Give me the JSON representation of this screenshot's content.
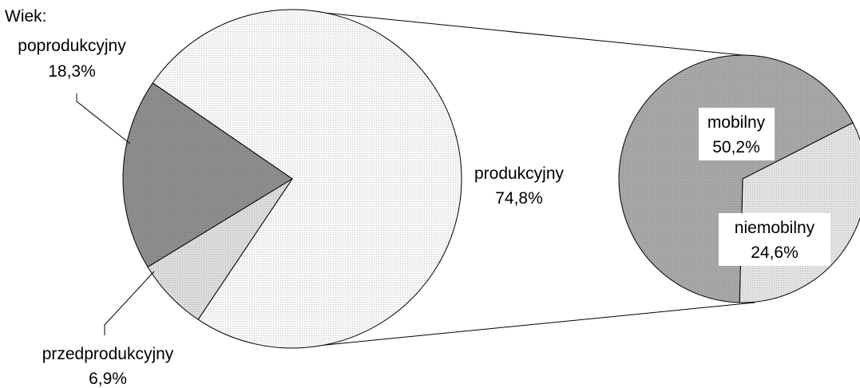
{
  "chart_data": {
    "type": "pie",
    "title": "",
    "legend_title": "Wiek:",
    "main_pie": {
      "slices": [
        {
          "name": "produkcyjny",
          "value": 74.8,
          "label": "74,8%",
          "color": "#f7f7f7"
        },
        {
          "name": "przedprodukcyjny",
          "value": 6.9,
          "label": "6,9%",
          "color": "#dcdcdc"
        },
        {
          "name": "poprodukcyjny",
          "value": 18.3,
          "label": "18,3%",
          "color": "#8e8e8e"
        }
      ]
    },
    "detail_pie": {
      "parent": "produkcyjny",
      "slices": [
        {
          "name": "niemobilny",
          "value": 24.6,
          "label": "24,6%",
          "color": "#e3e3e3"
        },
        {
          "name": "mobilny",
          "value": 50.2,
          "label": "50,2%",
          "color": "#a8a8a8"
        }
      ]
    }
  }
}
